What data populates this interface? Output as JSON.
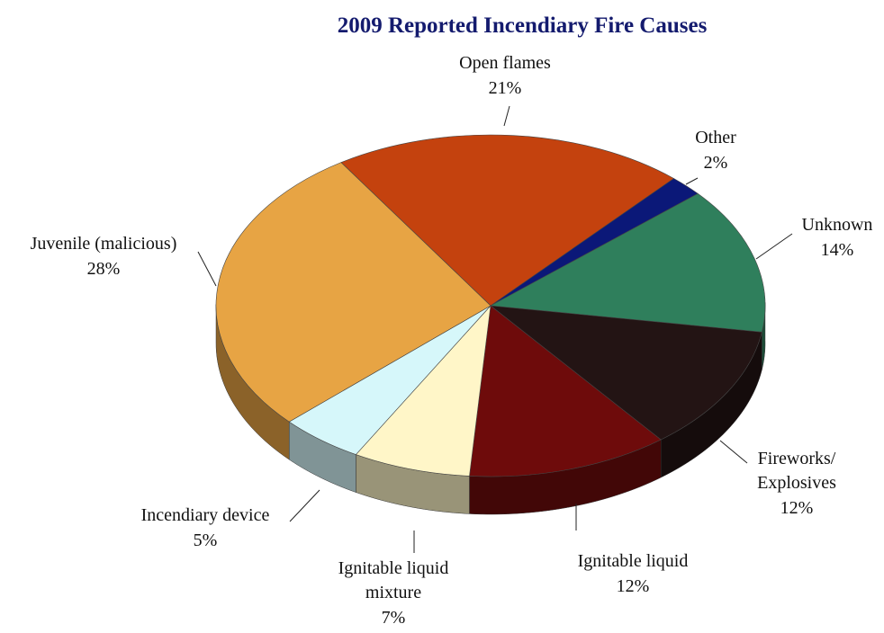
{
  "chart_data": {
    "type": "pie",
    "title": "2009 Reported Incendiary Fire Causes",
    "categories": [
      "Open flames",
      "Other",
      "Unknown",
      "Fireworks/\nExplosives",
      "Ignitable liquid",
      "Ignitable liquid\nmixture",
      "Incendiary device",
      "Juvenile (malicious)"
    ],
    "values": [
      21,
      2,
      14,
      12,
      12,
      7,
      5,
      28
    ],
    "value_labels": [
      "21%",
      "2%",
      "14%",
      "12%",
      "12%",
      "7%",
      "5%",
      "28%"
    ],
    "colors": [
      "#c4420e",
      "#0b1878",
      "#2f7f5c",
      "#231414",
      "#6e0b0b",
      "#fff6c8",
      "#d6f7fa",
      "#e7a444"
    ]
  }
}
